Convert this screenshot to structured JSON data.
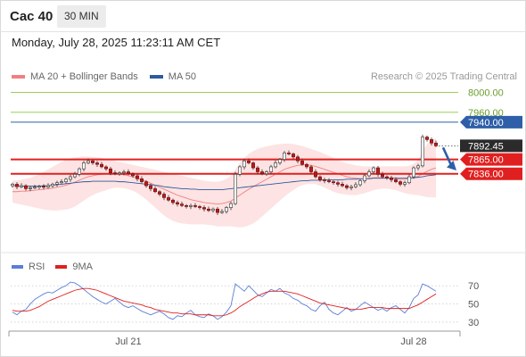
{
  "header": {
    "symbol": "Cac 40",
    "interval": "30 MIN",
    "datetime": "Monday, July 28, 2025 11:23:11 AM CET"
  },
  "legend": {
    "ma20_label": "MA 20 + Bollinger Bands",
    "ma50_label": "MA 50",
    "copyright": "Research © 2025 Trading Central"
  },
  "rsi_legend": {
    "rsi_label": "RSI",
    "ma_label": "9MA"
  },
  "colors": {
    "bollinger": "#f08080",
    "ma50": "#2f5a9e",
    "resistance_green": "#8cc63f",
    "support_red": "#e02020",
    "pivot_blue": "#2e5fa8",
    "rsi": "#5b7fd6",
    "rsi_ma": "#e02020"
  },
  "chart_data": [
    {
      "type": "candlestick",
      "title": "Cac 40",
      "ylim": [
        7715,
        8010
      ],
      "x_tick_labels": [
        "Jul 21",
        "Jul 28"
      ],
      "levels": [
        {
          "value": 8000.0,
          "label": "8000.00",
          "kind": "resistance"
        },
        {
          "value": 7960.0,
          "label": "7960.00",
          "kind": "resistance"
        },
        {
          "value": 7940.0,
          "label": "7940.00",
          "kind": "pivot"
        },
        {
          "value": 7865.0,
          "label": "7865.00",
          "kind": "support"
        },
        {
          "value": 7836.0,
          "label": "7836.00",
          "kind": "support"
        }
      ],
      "last_price": {
        "value": 7892.45,
        "label": "7892.45"
      },
      "closes": [
        7815,
        7810,
        7812,
        7806,
        7808,
        7809,
        7811,
        7809,
        7812,
        7815,
        7818,
        7820,
        7825,
        7830,
        7835,
        7846,
        7858,
        7862,
        7858,
        7855,
        7850,
        7846,
        7838,
        7836,
        7838,
        7840,
        7836,
        7832,
        7826,
        7820,
        7812,
        7806,
        7800,
        7795,
        7788,
        7783,
        7778,
        7775,
        7772,
        7770,
        7772,
        7770,
        7768,
        7765,
        7762,
        7765,
        7758,
        7760,
        7768,
        7776,
        7835,
        7850,
        7862,
        7858,
        7848,
        7840,
        7836,
        7840,
        7850,
        7858,
        7865,
        7878,
        7876,
        7870,
        7862,
        7855,
        7850,
        7840,
        7830,
        7824,
        7822,
        7820,
        7818,
        7815,
        7812,
        7808,
        7810,
        7814,
        7822,
        7832,
        7840,
        7848,
        7835,
        7830,
        7828,
        7824,
        7820,
        7815,
        7818,
        7830,
        7848,
        7852,
        7910,
        7905,
        7898,
        7892.45
      ],
      "ma20": [
        7800,
        7800,
        7801,
        7801,
        7802,
        7803,
        7804,
        7805,
        7806,
        7807,
        7809,
        7811,
        7813,
        7816,
        7819,
        7823,
        7827,
        7830,
        7832,
        7834,
        7835,
        7836,
        7836,
        7836,
        7835,
        7834,
        7832,
        7830,
        7827,
        7824,
        7821,
        7817,
        7813,
        7809,
        7805,
        7801,
        7797,
        7793,
        7790,
        7787,
        7784,
        7782,
        7780,
        7778,
        7777,
        7776,
        7775,
        7776,
        7778,
        7781,
        7787,
        7793,
        7799,
        7805,
        7810,
        7815,
        7820,
        7825,
        7830,
        7835,
        7840,
        7845,
        7848,
        7851,
        7853,
        7854,
        7854,
        7853,
        7851,
        7848,
        7845,
        7842,
        7839,
        7836,
        7833,
        7830,
        7828,
        7827,
        7826,
        7826,
        7827,
        7828,
        7828,
        7828,
        7828,
        7827,
        7826,
        7825,
        7825,
        7826,
        7828,
        7831,
        7836,
        7841,
        7845,
        7848
      ],
      "bb_upper": [
        7822,
        7823,
        7824,
        7826,
        7828,
        7831,
        7835,
        7840,
        7845,
        7850,
        7855,
        7860,
        7864,
        7867,
        7869,
        7870,
        7871,
        7871,
        7870,
        7869,
        7868,
        7866,
        7864,
        7862,
        7860,
        7858,
        7856,
        7854,
        7852,
        7850,
        7848,
        7846,
        7844,
        7842,
        7840,
        7838,
        7836,
        7834,
        7832,
        7830,
        7828,
        7826,
        7824,
        7822,
        7821,
        7820,
        7820,
        7822,
        7826,
        7832,
        7845,
        7858,
        7868,
        7876,
        7882,
        7886,
        7889,
        7891,
        7893,
        7895,
        7896,
        7897,
        7897,
        7896,
        7894,
        7892,
        7889,
        7886,
        7883,
        7880,
        7876,
        7872,
        7868,
        7864,
        7860,
        7857,
        7855,
        7853,
        7852,
        7851,
        7851,
        7851,
        7851,
        7851,
        7851,
        7851,
        7851,
        7851,
        7851,
        7852,
        7856,
        7864,
        7882,
        7896,
        7904,
        7908
      ],
      "bb_lower": [
        7778,
        7776,
        7774,
        7772,
        7770,
        7768,
        7766,
        7764,
        7763,
        7762,
        7762,
        7763,
        7764,
        7766,
        7770,
        7776,
        7782,
        7788,
        7793,
        7797,
        7800,
        7803,
        7806,
        7808,
        7808,
        7807,
        7805,
        7802,
        7797,
        7791,
        7784,
        7776,
        7768,
        7760,
        7752,
        7746,
        7741,
        7738,
        7736,
        7735,
        7734,
        7734,
        7734,
        7734,
        7733,
        7732,
        7730,
        7730,
        7730,
        7730,
        7729,
        7728,
        7729,
        7732,
        7736,
        7742,
        7750,
        7758,
        7766,
        7774,
        7782,
        7790,
        7797,
        7803,
        7809,
        7813,
        7815,
        7816,
        7815,
        7812,
        7808,
        7804,
        7800,
        7797,
        7795,
        7794,
        7793,
        7793,
        7795,
        7797,
        7800,
        7803,
        7805,
        7806,
        7806,
        7805,
        7803,
        7800,
        7797,
        7795,
        7794,
        7793,
        7791,
        7789,
        7789,
        7788
      ],
      "ma50": [
        7812,
        7812,
        7811,
        7811,
        7811,
        7811,
        7811,
        7812,
        7812,
        7813,
        7814,
        7815,
        7816,
        7817,
        7818,
        7819,
        7820,
        7820,
        7821,
        7821,
        7821,
        7821,
        7821,
        7821,
        7820,
        7820,
        7819,
        7818,
        7817,
        7816,
        7815,
        7814,
        7813,
        7812,
        7810,
        7809,
        7808,
        7807,
        7806,
        7806,
        7805,
        7805,
        7804,
        7804,
        7804,
        7804,
        7804,
        7804,
        7805,
        7806,
        7807,
        7808,
        7809,
        7810,
        7811,
        7812,
        7813,
        7814,
        7815,
        7816,
        7817,
        7818,
        7819,
        7820,
        7821,
        7822,
        7822,
        7823,
        7823,
        7823,
        7824,
        7824,
        7824,
        7824,
        7824,
        7825,
        7825,
        7825,
        7826,
        7826,
        7826,
        7827,
        7827,
        7827,
        7827,
        7827,
        7827,
        7827,
        7827,
        7828,
        7828,
        7829,
        7830,
        7832,
        7833,
        7834
      ]
    },
    {
      "type": "line",
      "title": "RSI",
      "ylim": [
        25,
        78
      ],
      "y_tick_labels": [
        "70",
        "50",
        "30"
      ],
      "y_ticks": [
        70,
        50,
        30
      ],
      "series": [
        {
          "name": "RSI",
          "values": [
            41,
            38,
            42,
            44,
            50,
            55,
            58,
            61,
            63,
            62,
            65,
            68,
            70,
            74,
            73,
            70,
            66,
            62,
            58,
            55,
            52,
            50,
            53,
            56,
            52,
            48,
            46,
            48,
            45,
            42,
            40,
            38,
            40,
            42,
            39,
            35,
            33,
            37,
            36,
            40,
            43,
            38,
            36,
            35,
            39,
            37,
            33,
            36,
            41,
            48,
            72,
            68,
            64,
            70,
            65,
            60,
            58,
            62,
            66,
            64,
            67,
            62,
            60,
            56,
            54,
            50,
            48,
            44,
            42,
            48,
            52,
            44,
            40,
            38,
            42,
            46,
            42,
            44,
            48,
            52,
            49,
            46,
            43,
            45,
            42,
            46,
            48,
            44,
            40,
            46,
            56,
            60,
            72,
            70,
            67,
            64
          ]
        },
        {
          "name": "9MA",
          "values": [
            43,
            42,
            42,
            42,
            43,
            45,
            47,
            50,
            53,
            55,
            57,
            59,
            61,
            63,
            65,
            66,
            67,
            67,
            66,
            65,
            63,
            61,
            59,
            57,
            55,
            53,
            52,
            51,
            50,
            49,
            47,
            46,
            44,
            43,
            42,
            41,
            40,
            40,
            39,
            39,
            39,
            38,
            38,
            38,
            38,
            37,
            37,
            37,
            38,
            40,
            43,
            47,
            50,
            53,
            56,
            59,
            61,
            63,
            64,
            64,
            64,
            64,
            63,
            62,
            61,
            59,
            57,
            55,
            53,
            51,
            50,
            49,
            48,
            47,
            46,
            45,
            44,
            44,
            44,
            45,
            46,
            46,
            46,
            46,
            45,
            45,
            45,
            45,
            45,
            45,
            47,
            49,
            52,
            55,
            58,
            61
          ]
        }
      ]
    }
  ]
}
